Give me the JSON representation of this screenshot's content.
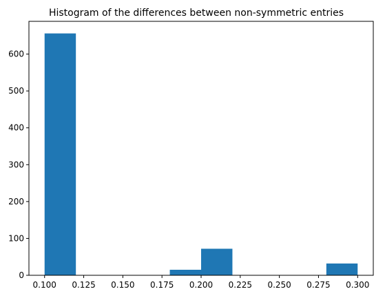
{
  "chart_data": {
    "type": "bar",
    "title": "Histogram of the differences between non-symmetric entries",
    "xlabel": "",
    "ylabel": "",
    "bins": [
      {
        "start": 0.1,
        "end": 0.12,
        "value": 656
      },
      {
        "start": 0.12,
        "end": 0.14,
        "value": 0
      },
      {
        "start": 0.14,
        "end": 0.16,
        "value": 0
      },
      {
        "start": 0.16,
        "end": 0.18,
        "value": 0
      },
      {
        "start": 0.18,
        "end": 0.2,
        "value": 15
      },
      {
        "start": 0.2,
        "end": 0.22,
        "value": 72
      },
      {
        "start": 0.22,
        "end": 0.24,
        "value": 0
      },
      {
        "start": 0.24,
        "end": 0.26,
        "value": 0
      },
      {
        "start": 0.26,
        "end": 0.28,
        "value": 0
      },
      {
        "start": 0.28,
        "end": 0.3,
        "value": 32
      }
    ],
    "xlim": [
      0.09,
      0.31
    ],
    "ylim": [
      0,
      688.8
    ],
    "xticks": [
      0.1,
      0.125,
      0.15,
      0.175,
      0.2,
      0.225,
      0.25,
      0.275,
      0.3
    ],
    "xtick_labels": [
      "0.100",
      "0.125",
      "0.150",
      "0.175",
      "0.200",
      "0.225",
      "0.250",
      "0.275",
      "0.300"
    ],
    "yticks": [
      0,
      100,
      200,
      300,
      400,
      500,
      600
    ],
    "ytick_labels": [
      "0",
      "100",
      "200",
      "300",
      "400",
      "500",
      "600"
    ],
    "bar_color": "#1f77b4",
    "grid": false,
    "legend": "none"
  }
}
